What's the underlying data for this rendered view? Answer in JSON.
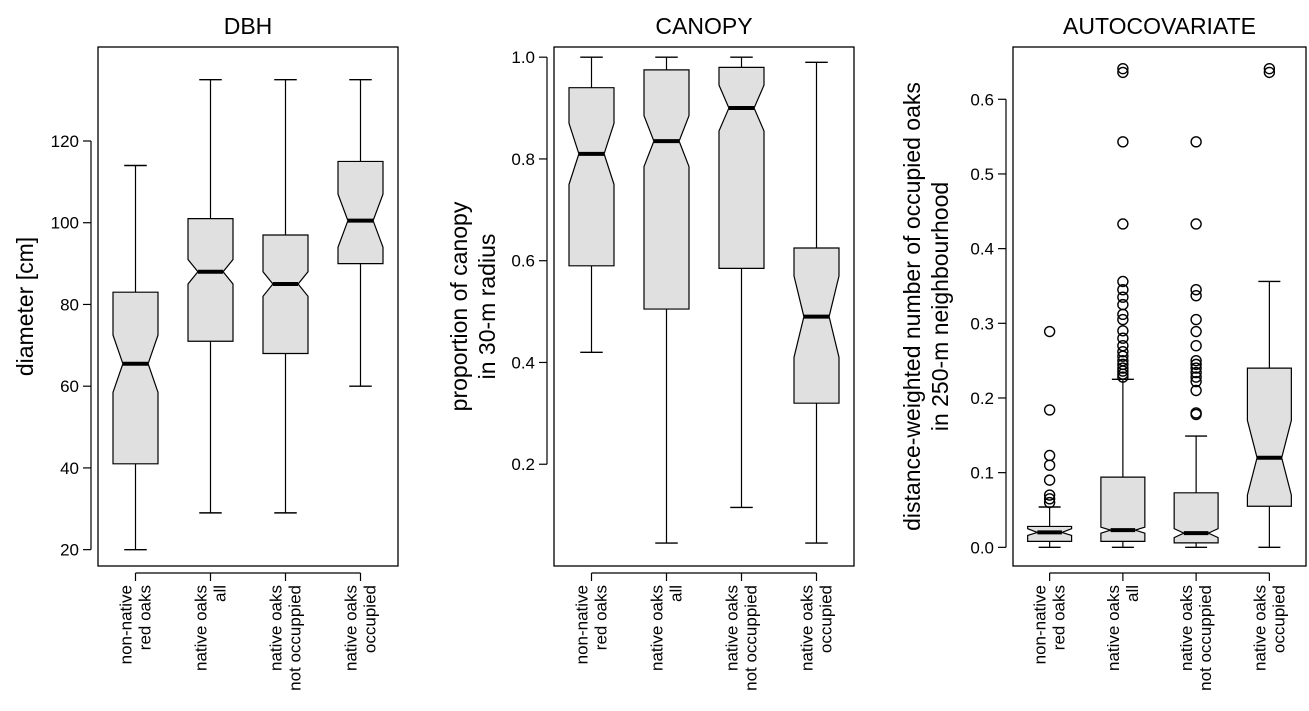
{
  "chart_data": [
    {
      "type": "boxplot",
      "notched": true,
      "title": "DBH",
      "ylabel": "diameter [cm]",
      "ylabel_lines": [
        "diameter [cm]"
      ],
      "ylim": [
        16,
        143
      ],
      "yticks": [
        20,
        40,
        60,
        80,
        100,
        120
      ],
      "categories": [
        [
          "non-native",
          "red oaks"
        ],
        [
          "native oaks",
          "all"
        ],
        [
          "native oaks",
          "not occuppied"
        ],
        [
          "native oaks",
          "occupied"
        ]
      ],
      "boxes": [
        {
          "min": 20,
          "q1": 41,
          "median": 65.5,
          "q3": 83,
          "max": 114,
          "notch_low": 58.5,
          "notch_high": 72.5,
          "outliers": []
        },
        {
          "min": 29,
          "q1": 71,
          "median": 88,
          "q3": 101,
          "max": 135,
          "notch_low": 85,
          "notch_high": 91,
          "outliers": []
        },
        {
          "min": 29,
          "q1": 68,
          "median": 85,
          "q3": 97,
          "max": 135,
          "notch_low": 82,
          "notch_high": 88,
          "outliers": []
        },
        {
          "min": 60,
          "q1": 90,
          "median": 100.5,
          "q3": 115,
          "max": 135,
          "notch_low": 94,
          "notch_high": 107,
          "outliers": []
        }
      ],
      "box_fill": "#e0e0e0"
    },
    {
      "type": "boxplot",
      "notched": true,
      "title": "CANOPY",
      "ylabel": "proportion of canopy in 30-m radius",
      "ylabel_lines": [
        "proportion of canopy",
        "in 30-m radius"
      ],
      "ylim": [
        0,
        1.02
      ],
      "yticks": [
        0.2,
        0.4,
        0.6,
        0.8,
        1.0
      ],
      "ytick_labels": [
        "0.2",
        "0.4",
        "0.6",
        "0.8",
        "1.0"
      ],
      "categories": [
        [
          "non-native",
          "red oaks"
        ],
        [
          "native oaks",
          "all"
        ],
        [
          "native oaks",
          "not occuppied"
        ],
        [
          "native oaks",
          "occupied"
        ]
      ],
      "boxes": [
        {
          "min": 0.42,
          "q1": 0.59,
          "median": 0.81,
          "q3": 0.94,
          "max": 1.0,
          "notch_low": 0.75,
          "notch_high": 0.87,
          "outliers": []
        },
        {
          "min": 0.045,
          "q1": 0.505,
          "median": 0.835,
          "q3": 0.975,
          "max": 1.0,
          "notch_low": 0.785,
          "notch_high": 0.885,
          "outliers": []
        },
        {
          "min": 0.115,
          "q1": 0.585,
          "median": 0.9,
          "q3": 0.98,
          "max": 1.0,
          "notch_low": 0.855,
          "notch_high": 0.945,
          "outliers": []
        },
        {
          "min": 0.045,
          "q1": 0.32,
          "median": 0.49,
          "q3": 0.625,
          "max": 0.99,
          "notch_low": 0.41,
          "notch_high": 0.57,
          "outliers": []
        }
      ],
      "box_fill": "#e0e0e0"
    },
    {
      "type": "boxplot",
      "notched": true,
      "title": "AUTOCOVARIATE",
      "ylabel": "distance-weighted number of occupied oaks in 250-m neighbourhood",
      "ylabel_lines": [
        "distance-weighted number of occupied oaks",
        "in 250-m neighbourhood"
      ],
      "ylim": [
        -0.025,
        0.67
      ],
      "yticks": [
        0.0,
        0.1,
        0.2,
        0.3,
        0.4,
        0.5,
        0.6
      ],
      "ytick_labels": [
        "0.0",
        "0.1",
        "0.2",
        "0.3",
        "0.4",
        "0.5",
        "0.6"
      ],
      "categories": [
        [
          "non-native",
          "red oaks"
        ],
        [
          "native oaks",
          "all"
        ],
        [
          "native oaks",
          "not occuppied"
        ],
        [
          "native oaks",
          "occupied"
        ]
      ],
      "boxes": [
        {
          "min": 0.0,
          "q1": 0.008,
          "median": 0.02,
          "q3": 0.028,
          "max": 0.054,
          "notch_low": 0.016,
          "notch_high": 0.025,
          "outliers": [
            0.06,
            0.065,
            0.07,
            0.09,
            0.11,
            0.123,
            0.184,
            0.289
          ]
        },
        {
          "min": 0.0,
          "q1": 0.008,
          "median": 0.023,
          "q3": 0.094,
          "max": 0.225,
          "notch_low": 0.019,
          "notch_high": 0.027,
          "outliers": [
            0.228,
            0.232,
            0.236,
            0.24,
            0.245,
            0.25,
            0.256,
            0.262,
            0.27,
            0.28,
            0.29,
            0.305,
            0.312,
            0.325,
            0.335,
            0.345,
            0.356,
            0.433,
            0.543,
            0.636,
            0.641
          ]
        },
        {
          "min": 0.0,
          "q1": 0.006,
          "median": 0.019,
          "q3": 0.073,
          "max": 0.149,
          "notch_low": 0.013,
          "notch_high": 0.025,
          "outliers": [
            0.178,
            0.18,
            0.21,
            0.222,
            0.228,
            0.234,
            0.24,
            0.245,
            0.25,
            0.27,
            0.289,
            0.305,
            0.337,
            0.345,
            0.433,
            0.543
          ]
        },
        {
          "min": 0.0,
          "q1": 0.055,
          "median": 0.12,
          "q3": 0.24,
          "max": 0.356,
          "notch_low": 0.07,
          "notch_high": 0.17,
          "outliers": [
            0.636,
            0.641
          ]
        }
      ],
      "box_fill": "#e0e0e0"
    }
  ]
}
